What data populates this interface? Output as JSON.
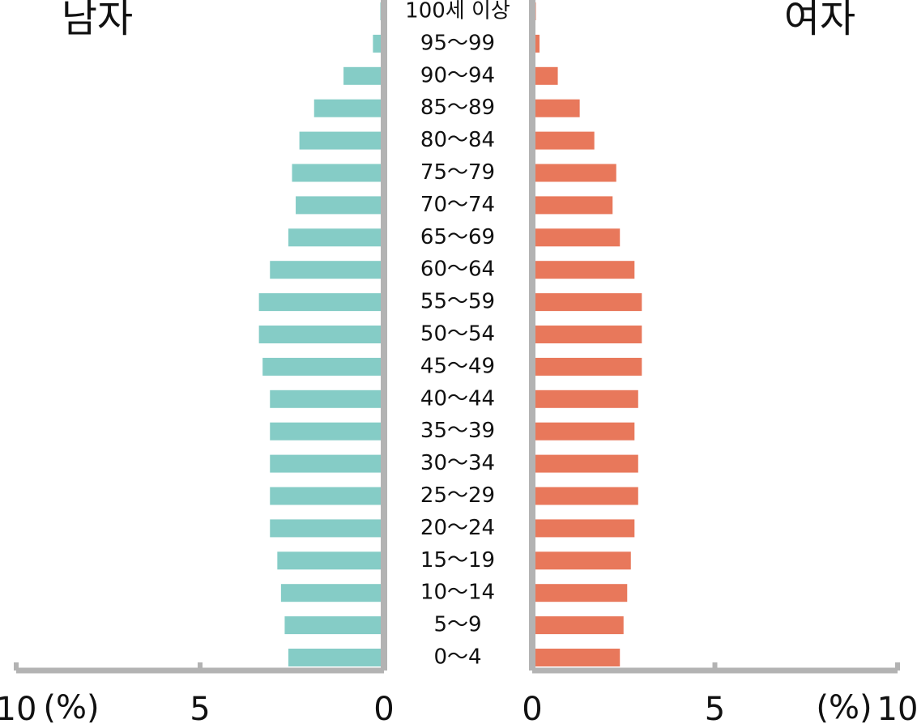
{
  "chart_data": {
    "type": "population-pyramid",
    "categories": [
      "0～4",
      "5～9",
      "10～14",
      "15～19",
      "20～24",
      "25～29",
      "30～34",
      "35～39",
      "40～44",
      "45～49",
      "50～54",
      "55～59",
      "60～64",
      "65～69",
      "70～74",
      "75～79",
      "80～84",
      "85～89",
      "90～94",
      "95～99",
      "100세 이상"
    ],
    "series": [
      {
        "name": "남자",
        "color": "#85ccc6",
        "side": "left",
        "values": [
          2.6,
          2.7,
          2.8,
          2.9,
          3.1,
          3.1,
          3.1,
          3.1,
          3.1,
          3.3,
          3.4,
          3.4,
          3.1,
          2.6,
          2.4,
          2.5,
          2.3,
          1.9,
          1.1,
          0.3,
          0.1
        ]
      },
      {
        "name": "여자",
        "color": "#e8785b",
        "side": "right",
        "values": [
          2.4,
          2.5,
          2.6,
          2.7,
          2.8,
          2.9,
          2.9,
          2.8,
          2.9,
          3.0,
          3.0,
          3.0,
          2.8,
          2.4,
          2.2,
          2.3,
          1.7,
          1.3,
          0.7,
          0.2,
          0.1
        ]
      }
    ],
    "xlim": [
      0,
      10
    ],
    "xticks": [
      0,
      5,
      10
    ],
    "x_unit": "(%)"
  }
}
